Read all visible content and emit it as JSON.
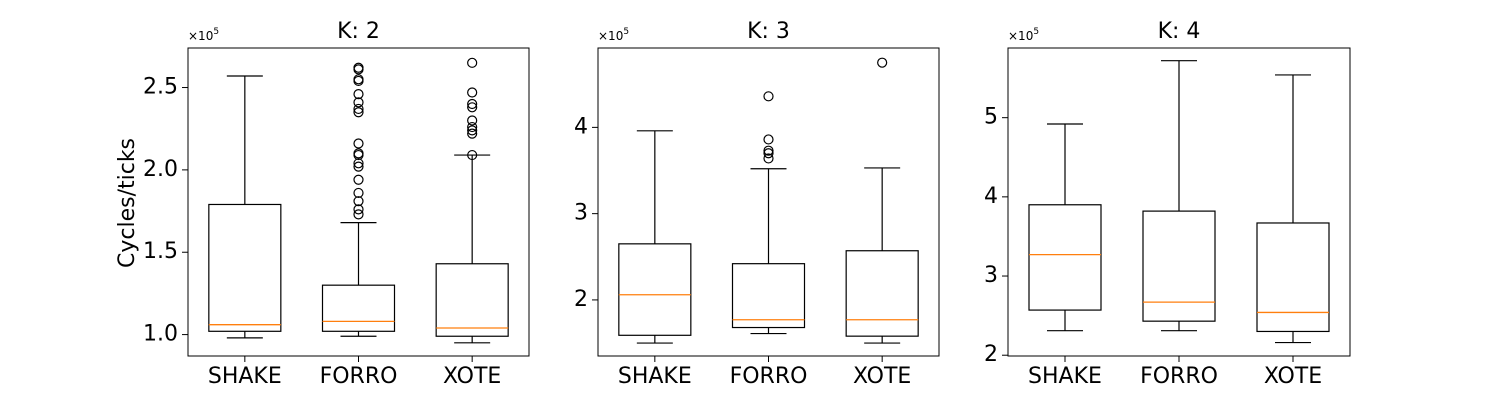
{
  "figure": {
    "ylabel": "Cycles/ticks",
    "colors": {
      "box": "#000000",
      "median": "#ff7f0e",
      "background": "#ffffff"
    }
  },
  "chart_data": [
    {
      "type": "box",
      "title": "K: 2",
      "offset_label": "×10",
      "offset_exponent": "5",
      "ylabel": "Cycles/ticks",
      "categories": [
        "SHAKE",
        "FORRO",
        "XOTE"
      ],
      "ylim": [
        0.87,
        2.74
      ],
      "yticks": [
        1.0,
        1.5,
        2.0,
        2.5
      ],
      "ytick_labels": [
        "1.0",
        "1.5",
        "2.0",
        "2.5"
      ],
      "boxes": [
        {
          "name": "SHAKE",
          "whislo": 0.98,
          "q1": 1.02,
          "med": 1.06,
          "q3": 1.79,
          "whishi": 2.57,
          "fliers": []
        },
        {
          "name": "FORRO",
          "whislo": 0.99,
          "q1": 1.02,
          "med": 1.08,
          "q3": 1.3,
          "whishi": 1.68,
          "fliers": [
            1.73,
            1.76,
            1.81,
            1.86,
            1.94,
            2.02,
            2.04,
            2.09,
            2.1,
            2.16,
            2.35,
            2.37,
            2.41,
            2.46,
            2.54,
            2.55,
            2.61,
            2.62
          ]
        },
        {
          "name": "XOTE",
          "whislo": 0.95,
          "q1": 0.99,
          "med": 1.04,
          "q3": 1.43,
          "whishi": 2.09,
          "fliers": [
            2.09,
            2.22,
            2.24,
            2.26,
            2.3,
            2.38,
            2.4,
            2.47,
            2.65
          ]
        }
      ]
    },
    {
      "type": "box",
      "title": "K: 3",
      "offset_label": "×10",
      "offset_exponent": "5",
      "ylabel": "",
      "categories": [
        "SHAKE",
        "FORRO",
        "XOTE"
      ],
      "ylim": [
        1.35,
        4.92
      ],
      "yticks": [
        2,
        3,
        4
      ],
      "ytick_labels": [
        "2",
        "3",
        "4"
      ],
      "boxes": [
        {
          "name": "SHAKE",
          "whislo": 1.5,
          "q1": 1.59,
          "med": 2.06,
          "q3": 2.65,
          "whishi": 3.96,
          "fliers": []
        },
        {
          "name": "FORRO",
          "whislo": 1.61,
          "q1": 1.68,
          "med": 1.77,
          "q3": 2.42,
          "whishi": 3.52,
          "fliers": [
            3.64,
            3.7,
            3.73,
            3.86,
            4.36
          ]
        },
        {
          "name": "XOTE",
          "whislo": 1.5,
          "q1": 1.58,
          "med": 1.77,
          "q3": 2.57,
          "whishi": 3.53,
          "fliers": [
            4.75
          ]
        }
      ]
    },
    {
      "type": "box",
      "title": "K: 4",
      "offset_label": "×10",
      "offset_exponent": "5",
      "ylabel": "",
      "categories": [
        "SHAKE",
        "FORRO",
        "XOTE"
      ],
      "ylim": [
        1.99,
        5.88
      ],
      "yticks": [
        2,
        3,
        4,
        5
      ],
      "ytick_labels": [
        "2",
        "3",
        "4",
        "5"
      ],
      "boxes": [
        {
          "name": "SHAKE",
          "whislo": 2.31,
          "q1": 2.57,
          "med": 3.27,
          "q3": 3.9,
          "whishi": 4.92,
          "fliers": []
        },
        {
          "name": "FORRO",
          "whislo": 2.31,
          "q1": 2.43,
          "med": 2.67,
          "q3": 3.82,
          "whishi": 5.72,
          "fliers": []
        },
        {
          "name": "XOTE",
          "whislo": 2.16,
          "q1": 2.3,
          "med": 2.54,
          "q3": 3.67,
          "whishi": 5.54,
          "fliers": []
        }
      ]
    }
  ]
}
